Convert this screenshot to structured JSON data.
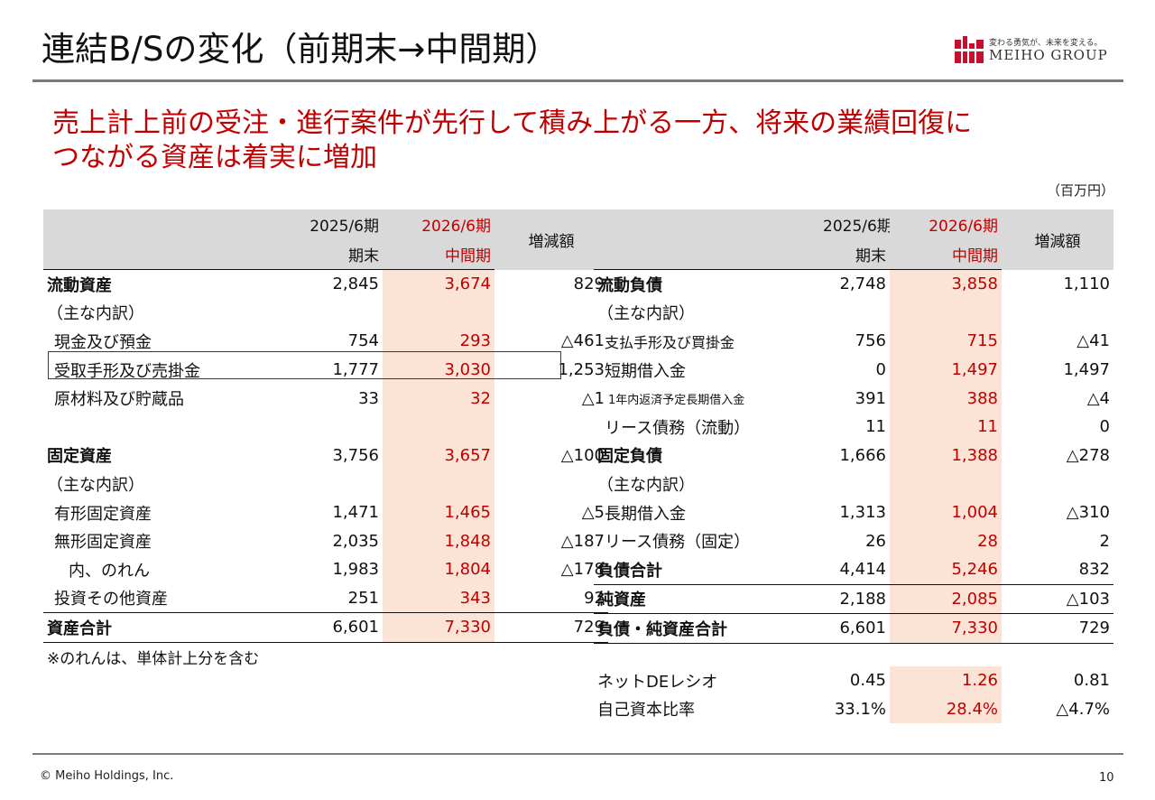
{
  "title": "連結B/Sの変化（前期末→中間期）",
  "logo": {
    "tagline": "変わる勇気が、未来を変える。",
    "name": "MEIHO GROUP"
  },
  "headline_line1": "売上計上前の受注・進行案件が先行して積み上がる一方、将来の業績回復に",
  "headline_line2": "つながる資産は着実に増加",
  "unit": "（百万円）",
  "header": {
    "prev_year": "2025/6期",
    "prev_sub": "期末",
    "cur_year": "2026/6期",
    "cur_sub": "中間期",
    "change": "増減額"
  },
  "assets": [
    {
      "label": "流動資産",
      "prev": "2,845",
      "cur": "3,674",
      "chg": "829"
    },
    {
      "label": "（主な内訳）",
      "prev": "",
      "cur": "",
      "chg": ""
    },
    {
      "label": "現金及び預金",
      "prev": "754",
      "cur": "293",
      "chg": "△461"
    },
    {
      "label": "受取手形及び売掛金",
      "prev": "1,777",
      "cur": "3,030",
      "chg": "1,253"
    },
    {
      "label": "原材料及び貯蔵品",
      "prev": "33",
      "cur": "32",
      "chg": "△1"
    },
    {
      "label": "",
      "prev": "",
      "cur": "",
      "chg": ""
    },
    {
      "label": "固定資産",
      "prev": "3,756",
      "cur": "3,657",
      "chg": "△100"
    },
    {
      "label": "（主な内訳）",
      "prev": "",
      "cur": "",
      "chg": ""
    },
    {
      "label": "有形固定資産",
      "prev": "1,471",
      "cur": "1,465",
      "chg": "△5"
    },
    {
      "label": "無形固定資産",
      "prev": "2,035",
      "cur": "1,848",
      "chg": "△187"
    },
    {
      "label": "内、のれん",
      "prev": "1,983",
      "cur": "1,804",
      "chg": "△178"
    },
    {
      "label": "投資その他資産",
      "prev": "251",
      "cur": "343",
      "chg": "92"
    },
    {
      "label": "資産合計",
      "prev": "6,601",
      "cur": "7,330",
      "chg": "729"
    }
  ],
  "liabilities": [
    {
      "label": "流動負債",
      "prev": "2,748",
      "cur": "3,858",
      "chg": "1,110"
    },
    {
      "label": "（主な内訳）",
      "prev": "",
      "cur": "",
      "chg": ""
    },
    {
      "label": "支払手形及び買掛金",
      "prev": "756",
      "cur": "715",
      "chg": "△41"
    },
    {
      "label": "短期借入金",
      "prev": "0",
      "cur": "1,497",
      "chg": "1,497"
    },
    {
      "label": "1年内返済予定長期借入金",
      "prev": "391",
      "cur": "388",
      "chg": "△4"
    },
    {
      "label": "リース債務（流動）",
      "prev": "11",
      "cur": "11",
      "chg": "0"
    },
    {
      "label": "固定負債",
      "prev": "1,666",
      "cur": "1,388",
      "chg": "△278"
    },
    {
      "label": "（主な内訳）",
      "prev": "",
      "cur": "",
      "chg": ""
    },
    {
      "label": "長期借入金",
      "prev": "1,313",
      "cur": "1,004",
      "chg": "△310"
    },
    {
      "label": "リース債務（固定）",
      "prev": "26",
      "cur": "28",
      "chg": "2"
    },
    {
      "label": "負債合計",
      "prev": "4,414",
      "cur": "5,246",
      "chg": "832"
    },
    {
      "label": "純資産",
      "prev": "2,188",
      "cur": "2,085",
      "chg": "△103"
    },
    {
      "label": "負債・純資産合計",
      "prev": "6,601",
      "cur": "7,330",
      "chg": "729"
    }
  ],
  "note": "※のれんは、単体計上分を含む",
  "ratios": [
    {
      "label": "ネットDEレシオ",
      "prev": "0.45",
      "cur": "1.26",
      "chg": "0.81"
    },
    {
      "label": "自己資本比率",
      "prev": "33.1%",
      "cur": "28.4%",
      "chg": "△4.7%"
    }
  ],
  "footer": "© Meiho Holdings, Inc.",
  "page_number": "10"
}
